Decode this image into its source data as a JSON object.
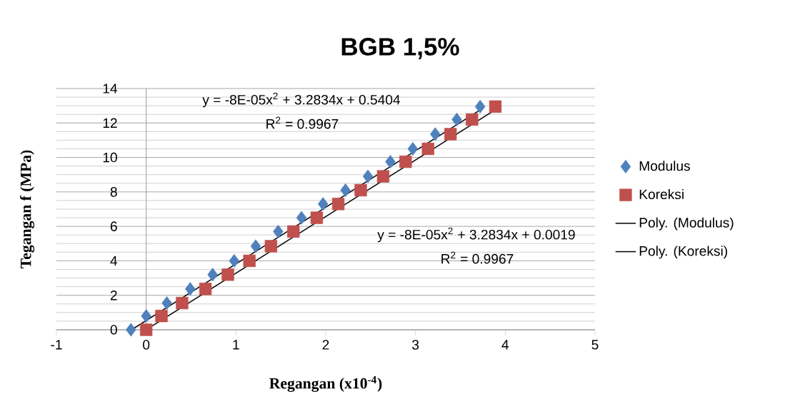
{
  "chart_data": {
    "type": "scatter",
    "title": "BGB 1,5%",
    "xlabel": "Regangan    (x10$^{-4}$)",
    "ylabel": "Tegangan f (MPa)",
    "xlim": [
      -1,
      5
    ],
    "ylim": [
      0,
      14
    ],
    "xticks": [
      -1,
      0,
      1,
      2,
      3,
      4,
      5
    ],
    "yticks": [
      0,
      2,
      4,
      6,
      8,
      10,
      12,
      14
    ],
    "grid": "y",
    "legend": "right",
    "series": [
      {
        "name": "Modulus",
        "color": "#4f81bd",
        "marker": "diamond",
        "x": [
          -0.17,
          0,
          0.23,
          0.49,
          0.74,
          0.98,
          1.22,
          1.47,
          1.73,
          1.97,
          2.22,
          2.47,
          2.72,
          2.97,
          3.22,
          3.46,
          3.72
        ],
        "values": [
          0,
          0.8,
          1.55,
          2.37,
          3.2,
          4.0,
          4.85,
          5.7,
          6.5,
          7.3,
          8.1,
          8.9,
          9.75,
          10.5,
          11.35,
          12.2,
          12.95
        ]
      },
      {
        "name": "Koreksi",
        "color": "#c0504d",
        "marker": "square",
        "x": [
          0,
          0.17,
          0.4,
          0.66,
          0.91,
          1.15,
          1.39,
          1.64,
          1.9,
          2.14,
          2.39,
          2.64,
          2.89,
          3.14,
          3.39,
          3.63,
          3.89
        ],
        "values": [
          0,
          0.8,
          1.55,
          2.37,
          3.2,
          4.0,
          4.85,
          5.7,
          6.5,
          7.3,
          8.1,
          8.9,
          9.75,
          10.5,
          11.35,
          12.2,
          12.95
        ]
      },
      {
        "name": "Poly. (Modulus)",
        "type": "line",
        "color": "#000000",
        "marker": "none",
        "line_style": "solid",
        "x": [
          -0.16,
          3.72
        ],
        "values": [
          0.01,
          12.75
        ]
      },
      {
        "name": "Poly. (Koreksi)",
        "type": "line",
        "color": "#000000",
        "marker": "none",
        "line_style": "solid",
        "x": [
          0,
          3.85
        ],
        "values": [
          0,
          12.64
        ]
      }
    ],
    "annotations": [
      "y = -8E-05x$^{2}$ + 3.2834x + 0.5404",
      "R$^{2}$ = 0.9967",
      "y = -8E-05x$^{2}$ + 3.2834x + 0.0019",
      "R$^{2}$ = 0.9967"
    ]
  }
}
